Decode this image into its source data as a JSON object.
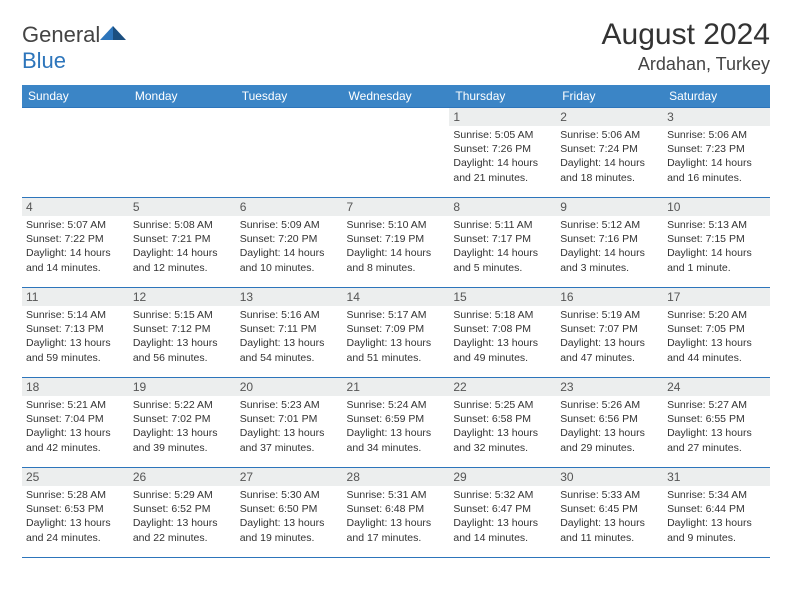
{
  "brand": {
    "part1": "General",
    "part2": "Blue"
  },
  "title": "August 2024",
  "location": "Ardahan, Turkey",
  "colors": {
    "header_bg": "#3b85c6",
    "border": "#2d75bb",
    "daynum_bg": "#eceeee"
  },
  "weekdays": [
    "Sunday",
    "Monday",
    "Tuesday",
    "Wednesday",
    "Thursday",
    "Friday",
    "Saturday"
  ],
  "weeks": [
    [
      null,
      null,
      null,
      null,
      {
        "n": "1",
        "sr": "5:05 AM",
        "ss": "7:26 PM",
        "dl": "14 hours and 21 minutes."
      },
      {
        "n": "2",
        "sr": "5:06 AM",
        "ss": "7:24 PM",
        "dl": "14 hours and 18 minutes."
      },
      {
        "n": "3",
        "sr": "5:06 AM",
        "ss": "7:23 PM",
        "dl": "14 hours and 16 minutes."
      }
    ],
    [
      {
        "n": "4",
        "sr": "5:07 AM",
        "ss": "7:22 PM",
        "dl": "14 hours and 14 minutes."
      },
      {
        "n": "5",
        "sr": "5:08 AM",
        "ss": "7:21 PM",
        "dl": "14 hours and 12 minutes."
      },
      {
        "n": "6",
        "sr": "5:09 AM",
        "ss": "7:20 PM",
        "dl": "14 hours and 10 minutes."
      },
      {
        "n": "7",
        "sr": "5:10 AM",
        "ss": "7:19 PM",
        "dl": "14 hours and 8 minutes."
      },
      {
        "n": "8",
        "sr": "5:11 AM",
        "ss": "7:17 PM",
        "dl": "14 hours and 5 minutes."
      },
      {
        "n": "9",
        "sr": "5:12 AM",
        "ss": "7:16 PM",
        "dl": "14 hours and 3 minutes."
      },
      {
        "n": "10",
        "sr": "5:13 AM",
        "ss": "7:15 PM",
        "dl": "14 hours and 1 minute."
      }
    ],
    [
      {
        "n": "11",
        "sr": "5:14 AM",
        "ss": "7:13 PM",
        "dl": "13 hours and 59 minutes."
      },
      {
        "n": "12",
        "sr": "5:15 AM",
        "ss": "7:12 PM",
        "dl": "13 hours and 56 minutes."
      },
      {
        "n": "13",
        "sr": "5:16 AM",
        "ss": "7:11 PM",
        "dl": "13 hours and 54 minutes."
      },
      {
        "n": "14",
        "sr": "5:17 AM",
        "ss": "7:09 PM",
        "dl": "13 hours and 51 minutes."
      },
      {
        "n": "15",
        "sr": "5:18 AM",
        "ss": "7:08 PM",
        "dl": "13 hours and 49 minutes."
      },
      {
        "n": "16",
        "sr": "5:19 AM",
        "ss": "7:07 PM",
        "dl": "13 hours and 47 minutes."
      },
      {
        "n": "17",
        "sr": "5:20 AM",
        "ss": "7:05 PM",
        "dl": "13 hours and 44 minutes."
      }
    ],
    [
      {
        "n": "18",
        "sr": "5:21 AM",
        "ss": "7:04 PM",
        "dl": "13 hours and 42 minutes."
      },
      {
        "n": "19",
        "sr": "5:22 AM",
        "ss": "7:02 PM",
        "dl": "13 hours and 39 minutes."
      },
      {
        "n": "20",
        "sr": "5:23 AM",
        "ss": "7:01 PM",
        "dl": "13 hours and 37 minutes."
      },
      {
        "n": "21",
        "sr": "5:24 AM",
        "ss": "6:59 PM",
        "dl": "13 hours and 34 minutes."
      },
      {
        "n": "22",
        "sr": "5:25 AM",
        "ss": "6:58 PM",
        "dl": "13 hours and 32 minutes."
      },
      {
        "n": "23",
        "sr": "5:26 AM",
        "ss": "6:56 PM",
        "dl": "13 hours and 29 minutes."
      },
      {
        "n": "24",
        "sr": "5:27 AM",
        "ss": "6:55 PM",
        "dl": "13 hours and 27 minutes."
      }
    ],
    [
      {
        "n": "25",
        "sr": "5:28 AM",
        "ss": "6:53 PM",
        "dl": "13 hours and 24 minutes."
      },
      {
        "n": "26",
        "sr": "5:29 AM",
        "ss": "6:52 PM",
        "dl": "13 hours and 22 minutes."
      },
      {
        "n": "27",
        "sr": "5:30 AM",
        "ss": "6:50 PM",
        "dl": "13 hours and 19 minutes."
      },
      {
        "n": "28",
        "sr": "5:31 AM",
        "ss": "6:48 PM",
        "dl": "13 hours and 17 minutes."
      },
      {
        "n": "29",
        "sr": "5:32 AM",
        "ss": "6:47 PM",
        "dl": "13 hours and 14 minutes."
      },
      {
        "n": "30",
        "sr": "5:33 AM",
        "ss": "6:45 PM",
        "dl": "13 hours and 11 minutes."
      },
      {
        "n": "31",
        "sr": "5:34 AM",
        "ss": "6:44 PM",
        "dl": "13 hours and 9 minutes."
      }
    ]
  ],
  "labels": {
    "sunrise": "Sunrise: ",
    "sunset": "Sunset: ",
    "daylight": "Daylight: "
  }
}
